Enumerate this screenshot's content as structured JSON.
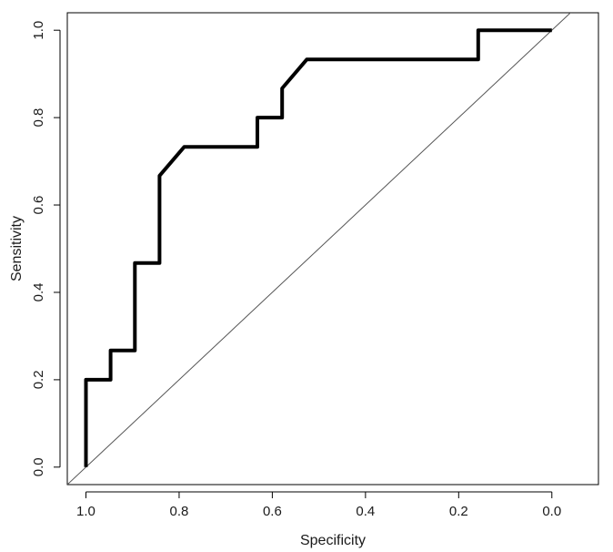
{
  "chart_data": {
    "type": "line",
    "title": "",
    "xlabel": "Specificity",
    "ylabel": "Sensitivity",
    "x_reversed": true,
    "xlim": [
      1.04,
      -0.1
    ],
    "ylim": [
      -0.04,
      1.04
    ],
    "x_ticks": [
      1.0,
      0.8,
      0.6,
      0.4,
      0.2,
      0.0
    ],
    "x_tick_labels": [
      "1.0",
      "0.8",
      "0.6",
      "0.4",
      "0.2",
      "0.0"
    ],
    "y_ticks": [
      0.0,
      0.2,
      0.4,
      0.6,
      0.8,
      1.0
    ],
    "y_tick_labels": [
      "0.0",
      "0.2",
      "0.4",
      "0.6",
      "0.8",
      "1.0"
    ],
    "grid": false,
    "legend": false,
    "series": [
      {
        "specificity": [
          1.0,
          1.0,
          0.947,
          0.947,
          0.895,
          0.895,
          0.842,
          0.842,
          0.789,
          0.632,
          0.632,
          0.579,
          0.579,
          0.526,
          0.158,
          0.158,
          0.0
        ],
        "sensitivity": [
          0.0,
          0.2,
          0.2,
          0.267,
          0.267,
          0.467,
          0.467,
          0.667,
          0.733,
          0.733,
          0.8,
          0.8,
          0.867,
          0.933,
          0.933,
          1.0,
          1.0
        ],
        "color": "#000000"
      }
    ],
    "reference_line": {
      "specificity": [
        1.0,
        0.0
      ],
      "sensitivity": [
        0.0,
        1.0
      ],
      "color": "#555555"
    }
  }
}
